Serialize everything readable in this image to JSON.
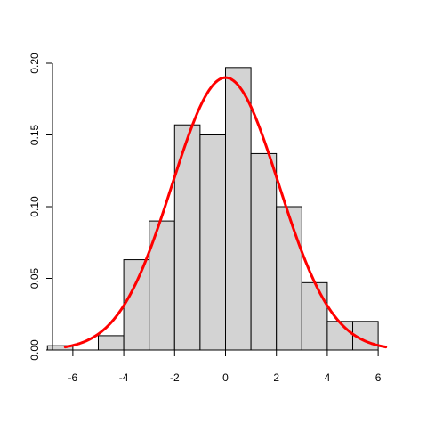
{
  "chart_data": {
    "type": "bar",
    "title": "",
    "xlabel": "",
    "ylabel": "",
    "xlim": [
      -6.8,
      6.8
    ],
    "ylim": [
      0,
      0.2
    ],
    "grid": false,
    "x_ticks": [
      -6,
      -4,
      -2,
      0,
      2,
      4,
      6
    ],
    "x_tick_labels": [
      "-6",
      "-4",
      "-2",
      "0",
      "2",
      "4",
      "6"
    ],
    "y_ticks": [
      0,
      0.05,
      0.1,
      0.15,
      0.2
    ],
    "y_tick_labels": [
      "0.00",
      "0.05",
      "0.10",
      "0.15",
      "0.20"
    ],
    "bins": [
      {
        "x0": -7,
        "x1": -6,
        "density": 0.003
      },
      {
        "x0": -6,
        "x1": -5,
        "density": 0.0
      },
      {
        "x0": -5,
        "x1": -4,
        "density": 0.01
      },
      {
        "x0": -4,
        "x1": -3,
        "density": 0.063
      },
      {
        "x0": -3,
        "x1": -2,
        "density": 0.09
      },
      {
        "x0": -2,
        "x1": -1,
        "density": 0.157
      },
      {
        "x0": -1,
        "x1": 0,
        "density": 0.15
      },
      {
        "x0": 0,
        "x1": 1,
        "density": 0.197
      },
      {
        "x0": 1,
        "x1": 2,
        "density": 0.137
      },
      {
        "x0": 2,
        "x1": 3,
        "density": 0.1
      },
      {
        "x0": 3,
        "x1": 4,
        "density": 0.047
      },
      {
        "x0": 4,
        "x1": 5,
        "density": 0.02
      },
      {
        "x0": 5,
        "x1": 6,
        "density": 0.02
      }
    ],
    "curve": {
      "type": "normal-density",
      "mean": 0,
      "sd": 2.1,
      "x_range": [
        -6.3,
        6.3
      ],
      "color": "#ff0000"
    },
    "bar_fill": "#d3d3d3",
    "bar_stroke": "#000000"
  }
}
